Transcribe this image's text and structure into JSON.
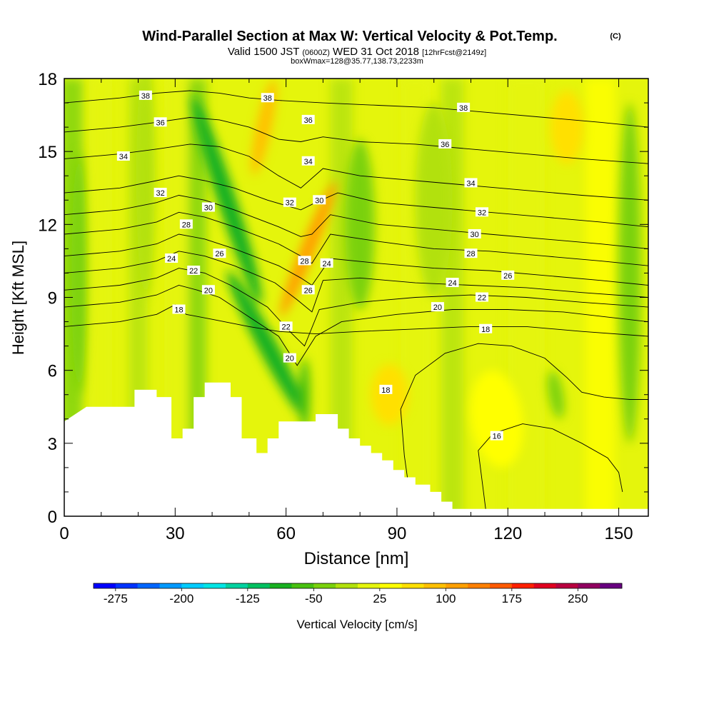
{
  "chart_data": {
    "type": "heatmap",
    "title": "Wind-Parallel Section at Max W: Vertical Velocity & Pot.Temp.",
    "title_mark": "(C)",
    "subtitle_parts": [
      "Valid 1500 JST",
      "(0600Z)",
      "WED 31 Oct 2018",
      "[12hrFcst@2149z]"
    ],
    "subtitle2": "boxWmax=128@35.77,138.73,2233m",
    "xlabel": "Distance [nm]",
    "ylabel": "Height [Kft MSL]",
    "xlim": [
      0,
      158
    ],
    "ylim": [
      0,
      18
    ],
    "x_ticks": [
      "0",
      "30",
      "60",
      "90",
      "120",
      "150"
    ],
    "y_ticks": [
      "0",
      "3",
      "6",
      "9",
      "12",
      "15",
      "18"
    ],
    "colorbar": {
      "label": "Vertical Velocity [cm/s]",
      "min": -300,
      "max": 300,
      "tick_labels": [
        "-275",
        "-200",
        "-125",
        "-50",
        "25",
        "100",
        "175",
        "250"
      ],
      "colors": [
        "#0000ff",
        "#0033ff",
        "#0066ff",
        "#0099ff",
        "#00ccff",
        "#00e5e5",
        "#00d2a0",
        "#00c060",
        "#18b020",
        "#48c010",
        "#7ad10c",
        "#b2e10c",
        "#e5f50c",
        "#ffff00",
        "#ffe000",
        "#ffc000",
        "#ffa000",
        "#ff8000",
        "#ff5a00",
        "#ff2000",
        "#e00020",
        "#b80040",
        "#900060",
        "#680080"
      ]
    },
    "theta_contours": [
      {
        "label": "16",
        "pts": [
          [
            114,
            0.3
          ],
          [
            113,
            1.5
          ],
          [
            112,
            2.7
          ],
          [
            116,
            3.4
          ],
          [
            124,
            3.8
          ],
          [
            132,
            3.6
          ],
          [
            140,
            3.0
          ],
          [
            147,
            2.4
          ],
          [
            150,
            1.8
          ],
          [
            151,
            1.0
          ]
        ]
      },
      {
        "label": "18",
        "pts": [
          [
            94,
            0.3
          ],
          [
            92,
            2.5
          ],
          [
            91,
            4.4
          ],
          [
            95,
            5.8
          ],
          [
            103,
            6.7
          ],
          [
            112,
            7.1
          ],
          [
            121,
            7.0
          ],
          [
            130,
            6.5
          ],
          [
            136,
            5.7
          ],
          [
            140,
            5.1
          ],
          [
            146,
            4.9
          ],
          [
            153,
            4.8
          ],
          [
            158,
            4.8
          ]
        ]
      },
      {
        "label": "18",
        "pts": [
          [
            0,
            7.8
          ],
          [
            15,
            8.0
          ],
          [
            25,
            8.3
          ],
          [
            30,
            8.7
          ],
          [
            33,
            8.3
          ],
          [
            40,
            8.1
          ],
          [
            50,
            7.8
          ],
          [
            58,
            7.6
          ],
          [
            68,
            7.5
          ],
          [
            80,
            7.6
          ],
          [
            95,
            7.7
          ],
          [
            110,
            7.8
          ],
          [
            125,
            7.8
          ],
          [
            140,
            7.6
          ],
          [
            158,
            7.4
          ]
        ]
      },
      {
        "label": "20",
        "pts": [
          [
            0,
            8.6
          ],
          [
            15,
            8.8
          ],
          [
            25,
            9.1
          ],
          [
            31,
            9.5
          ],
          [
            36,
            9.3
          ],
          [
            42,
            9.0
          ],
          [
            52,
            8.0
          ],
          [
            58,
            7.4
          ],
          [
            63,
            6.2
          ],
          [
            68,
            7.4
          ],
          [
            75,
            8.0
          ],
          [
            90,
            8.3
          ],
          [
            105,
            8.5
          ],
          [
            120,
            8.5
          ],
          [
            135,
            8.4
          ],
          [
            158,
            8.0
          ]
        ]
      },
      {
        "label": "22",
        "pts": [
          [
            0,
            9.3
          ],
          [
            15,
            9.5
          ],
          [
            25,
            9.8
          ],
          [
            31,
            10.2
          ],
          [
            38,
            10.0
          ],
          [
            45,
            9.5
          ],
          [
            55,
            8.6
          ],
          [
            61,
            7.6
          ],
          [
            65,
            7.0
          ],
          [
            69,
            8.5
          ],
          [
            80,
            8.8
          ],
          [
            95,
            9.0
          ],
          [
            110,
            9.1
          ],
          [
            125,
            9.0
          ],
          [
            140,
            8.8
          ],
          [
            158,
            8.6
          ]
        ]
      },
      {
        "label": "24",
        "pts": [
          [
            0,
            10.0
          ],
          [
            15,
            10.2
          ],
          [
            25,
            10.5
          ],
          [
            31,
            10.9
          ],
          [
            38,
            10.7
          ],
          [
            46,
            10.3
          ],
          [
            57,
            9.6
          ],
          [
            63,
            8.9
          ],
          [
            67,
            8.4
          ],
          [
            70,
            9.7
          ],
          [
            80,
            9.8
          ],
          [
            95,
            9.6
          ],
          [
            110,
            9.5
          ],
          [
            125,
            9.4
          ],
          [
            140,
            9.2
          ],
          [
            158,
            9.0
          ]
        ]
      },
      {
        "label": "26",
        "pts": [
          [
            0,
            10.7
          ],
          [
            15,
            10.9
          ],
          [
            25,
            11.2
          ],
          [
            31,
            11.6
          ],
          [
            38,
            11.4
          ],
          [
            46,
            11.0
          ],
          [
            58,
            10.3
          ],
          [
            64,
            9.8
          ],
          [
            67,
            9.5
          ],
          [
            72,
            10.6
          ],
          [
            85,
            10.4
          ],
          [
            100,
            10.2
          ],
          [
            115,
            10.1
          ],
          [
            130,
            9.9
          ],
          [
            145,
            9.7
          ],
          [
            158,
            9.5
          ]
        ]
      },
      {
        "label": "28",
        "pts": [
          [
            0,
            11.6
          ],
          [
            15,
            11.8
          ],
          [
            25,
            12.1
          ],
          [
            31,
            12.5
          ],
          [
            38,
            12.3
          ],
          [
            46,
            11.9
          ],
          [
            58,
            11.2
          ],
          [
            64,
            10.7
          ],
          [
            67,
            10.4
          ],
          [
            72,
            11.6
          ],
          [
            85,
            11.3
          ],
          [
            100,
            11.0
          ],
          [
            115,
            10.9
          ],
          [
            130,
            10.7
          ],
          [
            145,
            10.5
          ],
          [
            158,
            10.3
          ]
        ]
      },
      {
        "label": "30",
        "pts": [
          [
            0,
            12.4
          ],
          [
            15,
            12.6
          ],
          [
            25,
            12.9
          ],
          [
            31,
            13.2
          ],
          [
            38,
            13.0
          ],
          [
            46,
            12.6
          ],
          [
            58,
            11.9
          ],
          [
            64,
            11.5
          ],
          [
            67,
            11.6
          ],
          [
            72,
            12.4
          ],
          [
            85,
            12.0
          ],
          [
            100,
            11.8
          ],
          [
            115,
            11.6
          ],
          [
            130,
            11.4
          ],
          [
            145,
            11.2
          ],
          [
            158,
            11.0
          ]
        ]
      },
      {
        "label": "32",
        "pts": [
          [
            0,
            13.3
          ],
          [
            15,
            13.5
          ],
          [
            25,
            13.8
          ],
          [
            31,
            14.0
          ],
          [
            38,
            13.8
          ],
          [
            46,
            13.5
          ],
          [
            55,
            13.0
          ],
          [
            64,
            12.6
          ],
          [
            68,
            12.9
          ],
          [
            74,
            13.3
          ],
          [
            85,
            12.9
          ],
          [
            100,
            12.7
          ],
          [
            115,
            12.5
          ],
          [
            130,
            12.3
          ],
          [
            145,
            12.1
          ],
          [
            158,
            11.9
          ]
        ]
      },
      {
        "label": "34",
        "pts": [
          [
            0,
            14.7
          ],
          [
            15,
            14.9
          ],
          [
            25,
            15.1
          ],
          [
            34,
            15.3
          ],
          [
            42,
            15.2
          ],
          [
            50,
            14.8
          ],
          [
            58,
            14.0
          ],
          [
            64,
            13.5
          ],
          [
            70,
            14.3
          ],
          [
            80,
            14.0
          ],
          [
            95,
            13.8
          ],
          [
            110,
            13.6
          ],
          [
            125,
            13.4
          ],
          [
            140,
            13.2
          ],
          [
            158,
            13.0
          ]
        ]
      },
      {
        "label": "36",
        "pts": [
          [
            0,
            15.8
          ],
          [
            15,
            16.0
          ],
          [
            25,
            16.2
          ],
          [
            34,
            16.4
          ],
          [
            42,
            16.3
          ],
          [
            50,
            16.0
          ],
          [
            58,
            15.5
          ],
          [
            64,
            15.4
          ],
          [
            70,
            15.6
          ],
          [
            80,
            15.4
          ],
          [
            95,
            15.3
          ],
          [
            110,
            15.1
          ],
          [
            125,
            14.9
          ],
          [
            140,
            14.7
          ],
          [
            158,
            14.5
          ]
        ]
      },
      {
        "label": "38",
        "pts": [
          [
            0,
            17.0
          ],
          [
            15,
            17.2
          ],
          [
            25,
            17.4
          ],
          [
            34,
            17.5
          ],
          [
            42,
            17.4
          ],
          [
            50,
            17.2
          ],
          [
            58,
            17.1
          ],
          [
            70,
            17.0
          ],
          [
            85,
            16.9
          ],
          [
            100,
            16.8
          ],
          [
            115,
            16.6
          ],
          [
            130,
            16.4
          ],
          [
            145,
            16.2
          ],
          [
            158,
            16.0
          ]
        ]
      }
    ],
    "contour_labels": [
      {
        "text": "38",
        "x": 22,
        "y": 17.3
      },
      {
        "text": "38",
        "x": 55,
        "y": 17.2
      },
      {
        "text": "38",
        "x": 108,
        "y": 16.8
      },
      {
        "text": "36",
        "x": 26,
        "y": 16.2
      },
      {
        "text": "36",
        "x": 66,
        "y": 16.3
      },
      {
        "text": "36",
        "x": 103,
        "y": 15.3
      },
      {
        "text": "34",
        "x": 16,
        "y": 14.8
      },
      {
        "text": "34",
        "x": 66,
        "y": 14.6
      },
      {
        "text": "34",
        "x": 110,
        "y": 13.7
      },
      {
        "text": "32",
        "x": 26,
        "y": 13.3
      },
      {
        "text": "32",
        "x": 61,
        "y": 12.9
      },
      {
        "text": "32",
        "x": 113,
        "y": 12.5
      },
      {
        "text": "30",
        "x": 39,
        "y": 12.7
      },
      {
        "text": "30",
        "x": 69,
        "y": 13.0
      },
      {
        "text": "30",
        "x": 111,
        "y": 11.6
      },
      {
        "text": "28",
        "x": 33,
        "y": 12.0
      },
      {
        "text": "28",
        "x": 65,
        "y": 10.5
      },
      {
        "text": "28",
        "x": 110,
        "y": 10.8
      },
      {
        "text": "24",
        "x": 29,
        "y": 10.6
      },
      {
        "text": "24",
        "x": 71,
        "y": 10.4
      },
      {
        "text": "24",
        "x": 105,
        "y": 9.6
      },
      {
        "text": "26",
        "x": 42,
        "y": 10.8
      },
      {
        "text": "26",
        "x": 66,
        "y": 9.3
      },
      {
        "text": "26",
        "x": 120,
        "y": 9.9
      },
      {
        "text": "22",
        "x": 35,
        "y": 10.1
      },
      {
        "text": "22",
        "x": 60,
        "y": 7.8
      },
      {
        "text": "22",
        "x": 113,
        "y": 9.0
      },
      {
        "text": "20",
        "x": 39,
        "y": 9.3
      },
      {
        "text": "20",
        "x": 61,
        "y": 6.5
      },
      {
        "text": "20",
        "x": 101,
        "y": 8.6
      },
      {
        "text": "18",
        "x": 31,
        "y": 8.5
      },
      {
        "text": "18",
        "x": 87,
        "y": 5.2
      },
      {
        "text": "18",
        "x": 114,
        "y": 7.7
      },
      {
        "text": "16",
        "x": 117,
        "y": 3.3
      }
    ],
    "terrain": [
      [
        0,
        3.9
      ],
      [
        3,
        4.2
      ],
      [
        6,
        4.5
      ],
      [
        19,
        4.5
      ],
      [
        19,
        5.2
      ],
      [
        25,
        5.2
      ],
      [
        25,
        4.9
      ],
      [
        29,
        4.9
      ],
      [
        29,
        3.2
      ],
      [
        32,
        3.2
      ],
      [
        32,
        3.6
      ],
      [
        35,
        3.6
      ],
      [
        35,
        4.9
      ],
      [
        38,
        4.9
      ],
      [
        38,
        5.5
      ],
      [
        45,
        5.5
      ],
      [
        45,
        4.9
      ],
      [
        48,
        4.9
      ],
      [
        48,
        3.2
      ],
      [
        52,
        3.2
      ],
      [
        52,
        2.6
      ],
      [
        55,
        2.6
      ],
      [
        55,
        3.2
      ],
      [
        58,
        3.2
      ],
      [
        58,
        3.9
      ],
      [
        68,
        3.9
      ],
      [
        68,
        4.2
      ],
      [
        74,
        4.2
      ],
      [
        74,
        3.6
      ],
      [
        77,
        3.6
      ],
      [
        77,
        3.2
      ],
      [
        80,
        3.2
      ],
      [
        80,
        2.9
      ],
      [
        83,
        2.9
      ],
      [
        83,
        2.6
      ],
      [
        86,
        2.6
      ],
      [
        86,
        2.3
      ],
      [
        89,
        2.3
      ],
      [
        89,
        1.9
      ],
      [
        92,
        1.9
      ],
      [
        92,
        1.6
      ],
      [
        95,
        1.6
      ],
      [
        95,
        1.3
      ],
      [
        99,
        1.3
      ],
      [
        99,
        1.0
      ],
      [
        102,
        1.0
      ],
      [
        102,
        0.6
      ],
      [
        105,
        0.6
      ],
      [
        105,
        0.3
      ],
      [
        158,
        0.3
      ]
    ],
    "velocity_features": [
      {
        "x": 44,
        "y": 13,
        "w": 5,
        "h": 9,
        "rot": -18,
        "v": -85
      },
      {
        "x": 55,
        "y": 7,
        "w": 5,
        "h": 7,
        "rot": -28,
        "v": -80
      },
      {
        "x": 65,
        "y": 5,
        "w": 3,
        "h": 3,
        "rot": 0,
        "v": -65
      },
      {
        "x": 66,
        "y": 11,
        "w": 4,
        "h": 6,
        "rot": 22,
        "v": 115
      },
      {
        "x": 54,
        "y": 16,
        "w": 4,
        "h": 4,
        "rot": 12,
        "v": 95
      },
      {
        "x": 88,
        "y": 5,
        "w": 10,
        "h": 2.5,
        "rot": 0,
        "v": 70
      },
      {
        "x": 136,
        "y": 16,
        "w": 9,
        "h": 3,
        "rot": 0,
        "v": 70
      },
      {
        "x": 133,
        "y": 5,
        "w": 4,
        "h": 2,
        "rot": -10,
        "v": -45
      },
      {
        "x": 4,
        "y": 10,
        "w": 4,
        "h": 10,
        "rot": 0,
        "v": -30
      },
      {
        "x": 22,
        "y": 14,
        "w": 5,
        "h": 10,
        "rot": 0,
        "v": -25
      },
      {
        "x": 100,
        "y": 13,
        "w": 10,
        "h": 8,
        "rot": 0,
        "v": -25
      },
      {
        "x": 153,
        "y": 10,
        "w": 6,
        "h": 14,
        "rot": 0,
        "v": -30
      },
      {
        "x": 117,
        "y": 4,
        "w": 14,
        "h": 4,
        "rot": -8,
        "v": 45
      },
      {
        "x": 80,
        "y": 12,
        "w": 8,
        "h": 7,
        "rot": 0,
        "v": -30
      }
    ]
  }
}
